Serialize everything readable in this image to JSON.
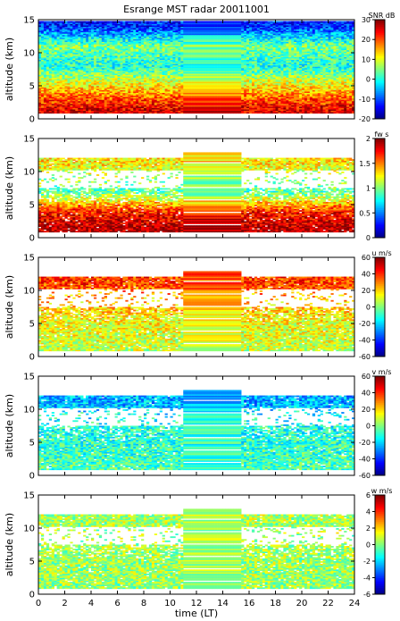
{
  "chart_data": {
    "type": "heatmap",
    "title": "Esrange MST radar 20011001",
    "xlabel": "time (LT)",
    "xlim": [
      0,
      24
    ],
    "xticks": [
      0,
      2,
      4,
      6,
      8,
      10,
      12,
      14,
      16,
      18,
      20,
      22,
      24
    ],
    "colormap": "jet",
    "panels": [
      {
        "name": "snr",
        "ylabel": "altitude (km)",
        "ylim": [
          0,
          15
        ],
        "yticks": [
          0,
          5,
          10,
          15
        ],
        "colorbar_label": "SNR dB",
        "clim": [
          -20,
          30
        ],
        "cticks": [
          30,
          20,
          10,
          0,
          -10,
          -20
        ],
        "coverage": "full",
        "profile": [
          {
            "alt": 1.5,
            "v": 25
          },
          {
            "alt": 3,
            "v": 20
          },
          {
            "alt": 5,
            "v": 12
          },
          {
            "alt": 8,
            "v": 0
          },
          {
            "alt": 11,
            "v": 5
          },
          {
            "alt": 14,
            "v": -12
          }
        ]
      },
      {
        "name": "spectral-width",
        "ylabel": "altitude (km)",
        "ylim": [
          0,
          15
        ],
        "yticks": [
          0,
          5,
          10,
          15
        ],
        "colorbar_label": "fw s",
        "clim": [
          0,
          2
        ],
        "cticks": [
          2,
          1.5,
          1,
          0.5,
          0
        ],
        "coverage": "sparse",
        "profile": [
          {
            "alt": 1.5,
            "v": 1.9
          },
          {
            "alt": 4,
            "v": 1.7
          },
          {
            "alt": 7,
            "v": 0.9
          },
          {
            "alt": 11.5,
            "v": 1.3
          }
        ]
      },
      {
        "name": "zonal-wind",
        "ylabel": "altitude (km)",
        "ylim": [
          0,
          15
        ],
        "yticks": [
          0,
          5,
          10,
          15
        ],
        "colorbar_label": "u m/s",
        "clim": [
          -60,
          60
        ],
        "cticks": [
          60,
          40,
          20,
          0,
          -20,
          -40,
          -60
        ],
        "coverage": "sparse",
        "profile": [
          {
            "alt": 1,
            "v": 8
          },
          {
            "alt": 5,
            "v": 14
          },
          {
            "alt": 9,
            "v": 25
          },
          {
            "alt": 11,
            "v": 38
          }
        ]
      },
      {
        "name": "meridional-wind",
        "ylabel": "altitude (km)",
        "ylim": [
          0,
          15
        ],
        "yticks": [
          0,
          5,
          10,
          15
        ],
        "colorbar_label": "v m/s",
        "clim": [
          -60,
          60
        ],
        "cticks": [
          60,
          40,
          20,
          0,
          -20,
          -40,
          -60
        ],
        "coverage": "sparse",
        "profile": [
          {
            "alt": 1,
            "v": -6
          },
          {
            "alt": 5,
            "v": -10
          },
          {
            "alt": 9,
            "v": -14
          },
          {
            "alt": 11,
            "v": -24
          }
        ]
      },
      {
        "name": "vertical-wind",
        "ylabel": "altitude (km)",
        "ylim": [
          0,
          15
        ],
        "yticks": [
          0,
          5,
          10,
          15
        ],
        "colorbar_label": "w m/s",
        "clim": [
          -6,
          6
        ],
        "cticks": [
          6,
          4,
          2,
          0,
          -2,
          -4,
          -6
        ],
        "coverage": "sparse",
        "profile": [
          {
            "alt": 1,
            "v": 0.3
          },
          {
            "alt": 5,
            "v": 0.4
          },
          {
            "alt": 11,
            "v": 0.5
          }
        ]
      }
    ]
  }
}
